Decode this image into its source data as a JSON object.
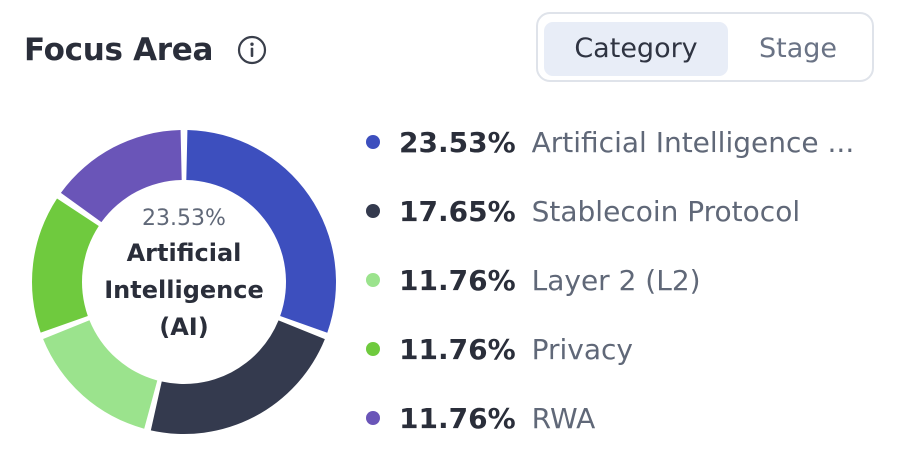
{
  "header": {
    "title": "Focus Area",
    "info_icon": "info-circle-icon"
  },
  "toggle": {
    "options": [
      "Category",
      "Stage"
    ],
    "selected": "Category"
  },
  "center": {
    "percent": "23.53%",
    "label": "Artificial Intelligence (AI)"
  },
  "legend": [
    {
      "percent": "23.53%",
      "label": "Artificial Intelligence ..."
    },
    {
      "percent": "17.65%",
      "label": "Stablecoin Protocol"
    },
    {
      "percent": "11.76%",
      "label": "Layer 2 (L2)"
    },
    {
      "percent": "11.76%",
      "label": "Privacy"
    },
    {
      "percent": "11.76%",
      "label": "RWA"
    }
  ],
  "chart_data": {
    "type": "pie",
    "categories": [
      "Artificial Intelligence (AI)",
      "Stablecoin Protocol",
      "Layer 2 (L2)",
      "Privacy",
      "RWA"
    ],
    "values": [
      23.53,
      17.65,
      11.76,
      11.76,
      11.76
    ],
    "colors": [
      "#3d4fbe",
      "#343a4e",
      "#9be38d",
      "#6fca3e",
      "#6a55b8"
    ],
    "donut": true,
    "legend_position": "right"
  }
}
